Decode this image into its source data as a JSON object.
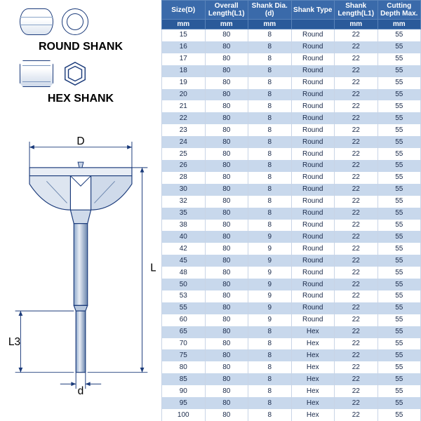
{
  "labels": {
    "round_shank": "ROUND SHANK",
    "hex_shank": "HEX SHANK",
    "dim_D": "D",
    "dim_L1": "L1",
    "dim_L3": "L3",
    "dim_d": "d"
  },
  "table": {
    "columns": [
      {
        "h1": "Size(D)",
        "h2": "mm"
      },
      {
        "h1": "Overall Length(L1)",
        "h2": "mm"
      },
      {
        "h1": "Shank Dia.(d)",
        "h2": "mm"
      },
      {
        "h1": "Shank Type",
        "h2": ""
      },
      {
        "h1": "Shank Length(L1)",
        "h2": "mm"
      },
      {
        "h1": "Cutting Depth Max.",
        "h2": "mm"
      }
    ],
    "rows": [
      [
        "15",
        "80",
        "8",
        "Round",
        "22",
        "55"
      ],
      [
        "16",
        "80",
        "8",
        "Round",
        "22",
        "55"
      ],
      [
        "17",
        "80",
        "8",
        "Round",
        "22",
        "55"
      ],
      [
        "18",
        "80",
        "8",
        "Round",
        "22",
        "55"
      ],
      [
        "19",
        "80",
        "8",
        "Round",
        "22",
        "55"
      ],
      [
        "20",
        "80",
        "8",
        "Round",
        "22",
        "55"
      ],
      [
        "21",
        "80",
        "8",
        "Round",
        "22",
        "55"
      ],
      [
        "22",
        "80",
        "8",
        "Round",
        "22",
        "55"
      ],
      [
        "23",
        "80",
        "8",
        "Round",
        "22",
        "55"
      ],
      [
        "24",
        "80",
        "8",
        "Round",
        "22",
        "55"
      ],
      [
        "25",
        "80",
        "8",
        "Round",
        "22",
        "55"
      ],
      [
        "26",
        "80",
        "8",
        "Round",
        "22",
        "55"
      ],
      [
        "28",
        "80",
        "8",
        "Round",
        "22",
        "55"
      ],
      [
        "30",
        "80",
        "8",
        "Round",
        "22",
        "55"
      ],
      [
        "32",
        "80",
        "8",
        "Round",
        "22",
        "55"
      ],
      [
        "35",
        "80",
        "8",
        "Round",
        "22",
        "55"
      ],
      [
        "38",
        "80",
        "8",
        "Round",
        "22",
        "55"
      ],
      [
        "40",
        "80",
        "9",
        "Round",
        "22",
        "55"
      ],
      [
        "42",
        "80",
        "9",
        "Round",
        "22",
        "55"
      ],
      [
        "45",
        "80",
        "9",
        "Round",
        "22",
        "55"
      ],
      [
        "48",
        "80",
        "9",
        "Round",
        "22",
        "55"
      ],
      [
        "50",
        "80",
        "9",
        "Round",
        "22",
        "55"
      ],
      [
        "53",
        "80",
        "9",
        "Round",
        "22",
        "55"
      ],
      [
        "55",
        "80",
        "9",
        "Round",
        "22",
        "55"
      ],
      [
        "60",
        "80",
        "9",
        "Round",
        "22",
        "55"
      ],
      [
        "65",
        "80",
        "8",
        "Hex",
        "22",
        "55"
      ],
      [
        "70",
        "80",
        "8",
        "Hex",
        "22",
        "55"
      ],
      [
        "75",
        "80",
        "8",
        "Hex",
        "22",
        "55"
      ],
      [
        "80",
        "80",
        "8",
        "Hex",
        "22",
        "55"
      ],
      [
        "85",
        "80",
        "8",
        "Hex",
        "22",
        "55"
      ],
      [
        "90",
        "80",
        "8",
        "Hex",
        "22",
        "55"
      ],
      [
        "95",
        "80",
        "8",
        "Hex",
        "22",
        "55"
      ],
      [
        "100",
        "80",
        "8",
        "Hex",
        "22",
        "55"
      ]
    ]
  },
  "colors": {
    "header_bg": "#3a6aaa",
    "subheader_bg": "#2a5a9a",
    "row_even": "#c8d8ec",
    "row_odd": "#ffffff",
    "line": "#1a3a7a"
  }
}
